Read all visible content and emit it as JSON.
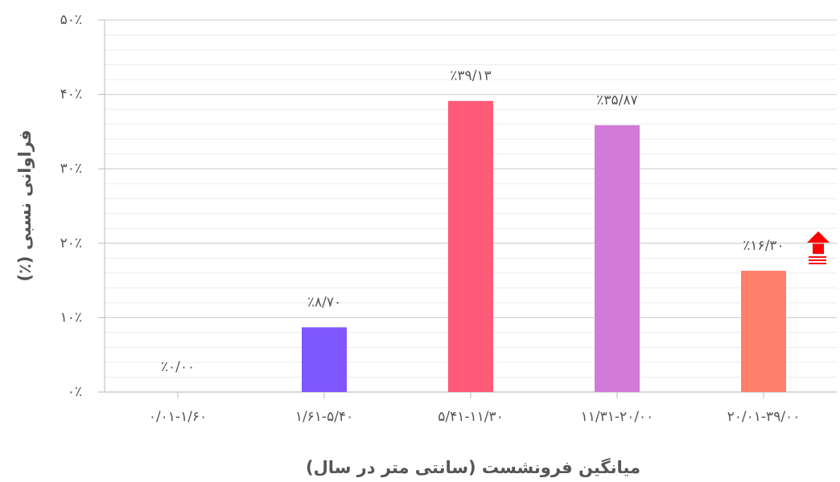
{
  "chart_data": {
    "type": "bar",
    "x_label": "میانگین فرونشست (سانتی متر در سال)",
    "y_label": "فراوانی نسبی (٪)",
    "categories": [
      "۰/۰۱-۱/۶۰",
      "۱/۶۱-۵/۴۰",
      "۵/۴۱-۱۱/۳۰",
      "۱۱/۳۱-۲۰/۰۰",
      "۲۰/۰۱-۳۹/۰۰"
    ],
    "values": [
      0,
      8.7,
      39.13,
      35.87,
      16.3
    ],
    "value_labels": [
      "٪۰/۰۰",
      "٪۸/۷۰",
      "٪۳۹/۱۳",
      "٪۳۵/۸۷",
      "٪۱۶/۳۰"
    ],
    "colors": [
      "#7f57ff",
      "#7f57ff",
      "#ff5a78",
      "#d17ad8",
      "#ff7f6a"
    ],
    "ylim": [
      0,
      50
    ],
    "yticks": [
      {
        "value": 0,
        "label": "۰٪"
      },
      {
        "value": 10,
        "label": "۱۰٪"
      },
      {
        "value": 20,
        "label": "۲۰٪"
      },
      {
        "value": 30,
        "label": "۳۰٪"
      },
      {
        "value": 40,
        "label": "۴۰٪"
      },
      {
        "value": 50,
        "label": "۵۰٪"
      }
    ],
    "minor_yticks": [
      2,
      4,
      6,
      8,
      12,
      14,
      16,
      18,
      22,
      24,
      26,
      28,
      32,
      34,
      36,
      38,
      42,
      44,
      46,
      48
    ],
    "grid": true
  }
}
